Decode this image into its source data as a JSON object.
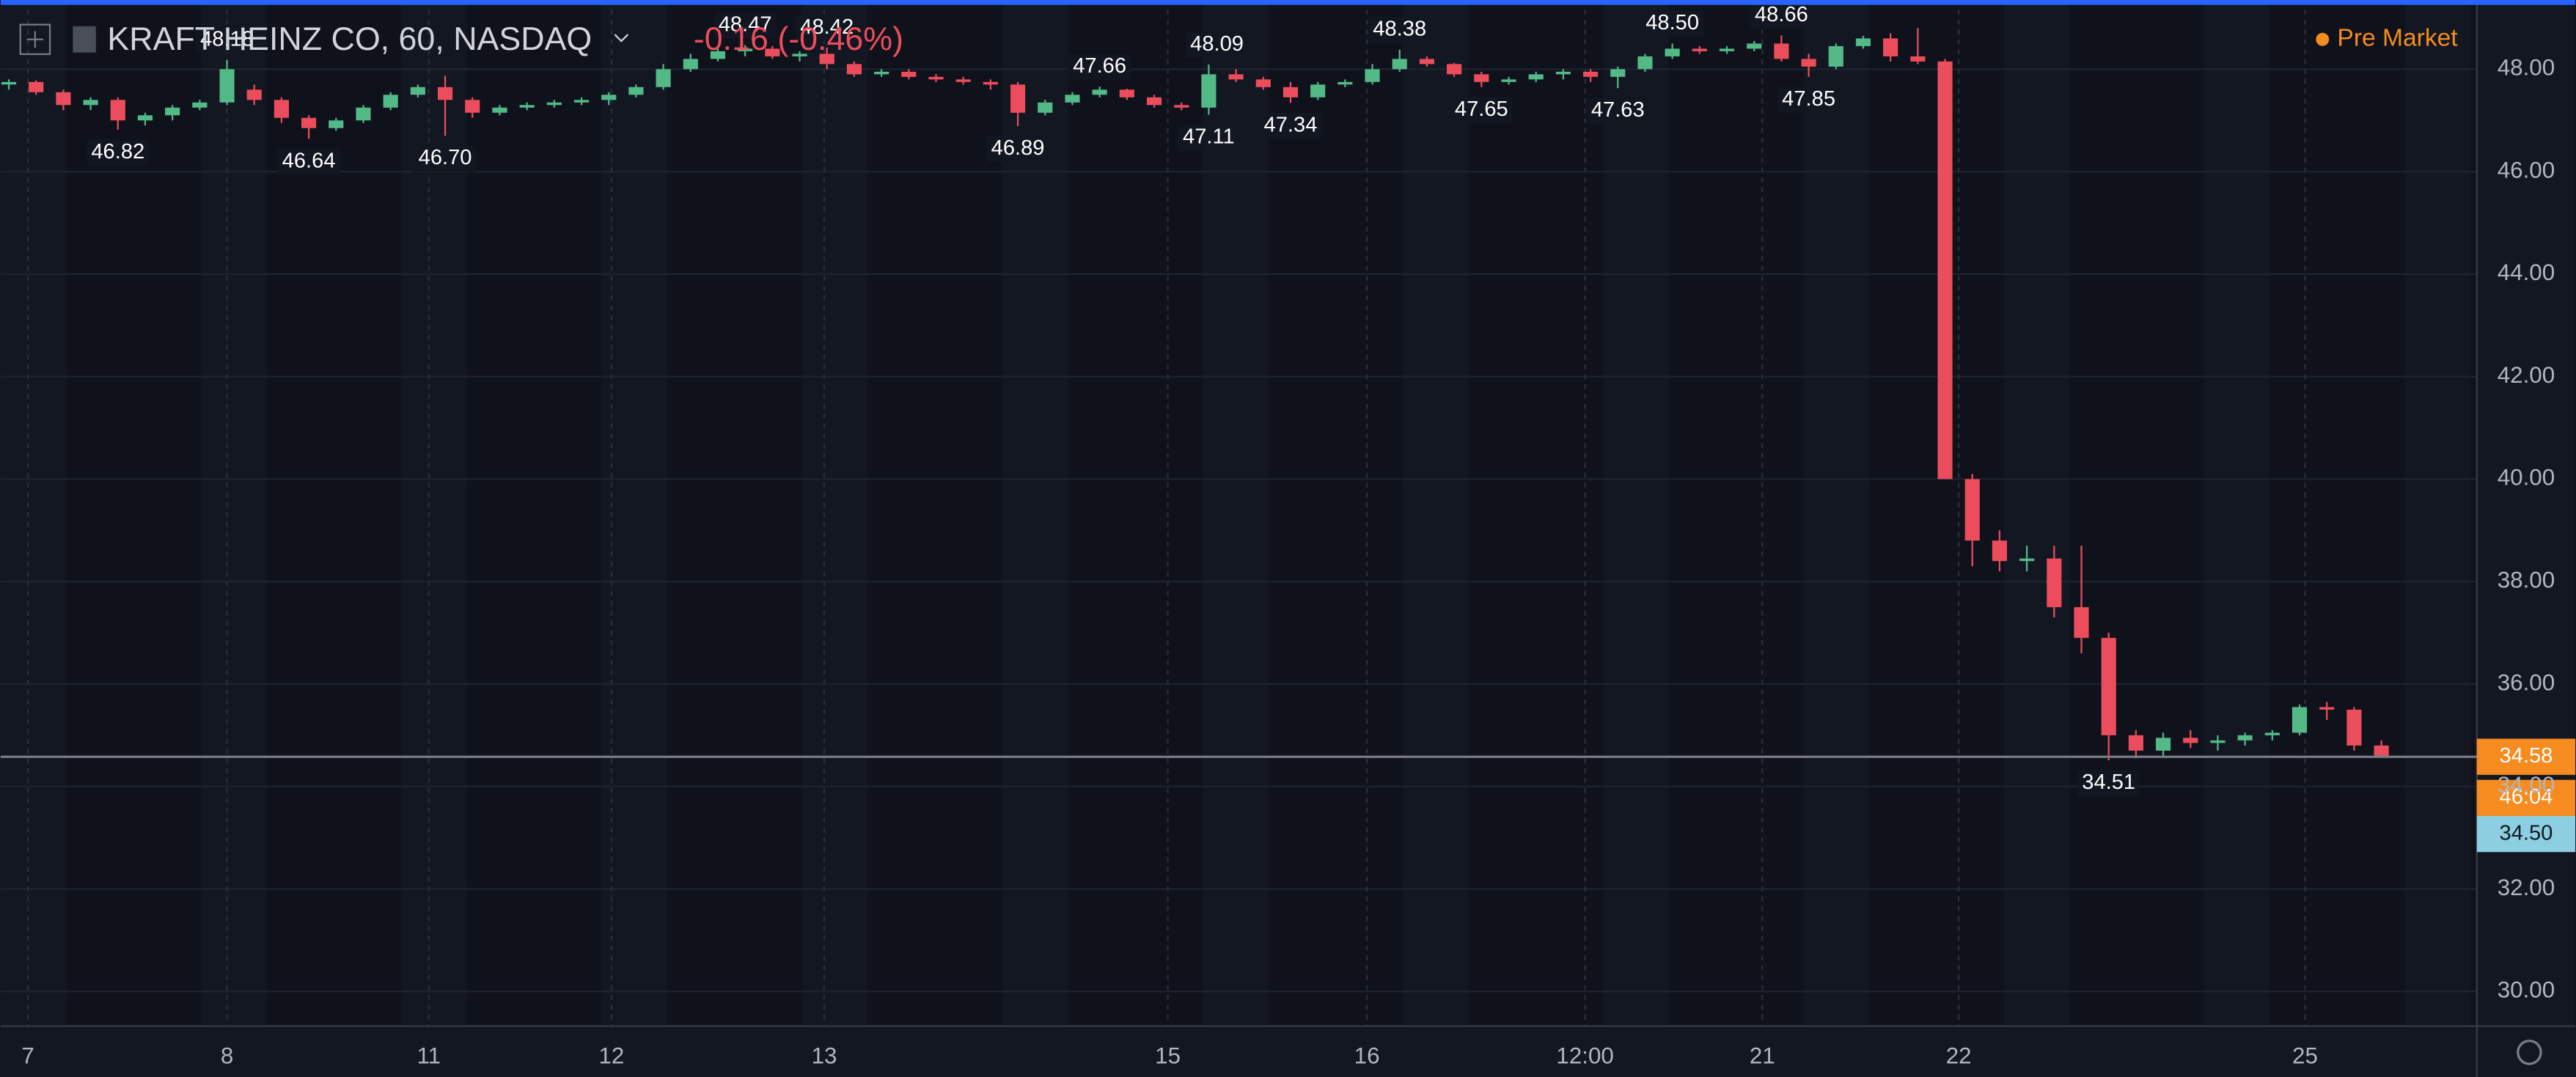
{
  "chart_data": {
    "type": "candlestick",
    "title": "KRAFT HEINZ CO, 60, NASDAQ",
    "change": "-0.16 (-0.46%)",
    "session": "Pre Market",
    "up_color": "#53b987",
    "down_color": "#eb4d5c",
    "ylim": [
      29.42,
      49.35
    ],
    "xlim": [
      -0.3,
      90.5
    ],
    "grid": true,
    "yticks": [
      {
        "value": 48,
        "label": "48.00"
      },
      {
        "value": 46,
        "label": "46.00"
      },
      {
        "value": 44,
        "label": "44.00"
      },
      {
        "value": 42,
        "label": "42.00"
      },
      {
        "value": 40,
        "label": "40.00"
      },
      {
        "value": 38,
        "label": "38.00"
      },
      {
        "value": 36,
        "label": "36.00"
      },
      {
        "value": 34,
        "label": "34.00"
      },
      {
        "value": 32,
        "label": "32.00"
      },
      {
        "value": 30,
        "label": "30.00"
      }
    ],
    "xticks": [
      {
        "value": 0.7,
        "label": "7"
      },
      {
        "value": 8.0,
        "label": "8"
      },
      {
        "value": 15.4,
        "label": "11"
      },
      {
        "value": 22.1,
        "label": "12"
      },
      {
        "value": 29.9,
        "label": "13"
      },
      {
        "value": 42.5,
        "label": "15"
      },
      {
        "value": 49.8,
        "label": "16"
      },
      {
        "value": 57.8,
        "label": "12:00"
      },
      {
        "value": 64.3,
        "label": "21"
      },
      {
        "value": 71.5,
        "label": "22"
      },
      {
        "value": 84.2,
        "label": "25"
      }
    ],
    "ohlc": [
      [
        47.7,
        47.8,
        47.6,
        47.75
      ],
      [
        47.75,
        47.78,
        47.5,
        47.55
      ],
      [
        47.55,
        47.6,
        47.2,
        47.3
      ],
      [
        47.3,
        47.45,
        47.2,
        47.4
      ],
      [
        47.4,
        47.45,
        46.82,
        47.0
      ],
      [
        47.0,
        47.15,
        46.9,
        47.1
      ],
      [
        47.1,
        47.3,
        47.0,
        47.25
      ],
      [
        47.25,
        47.4,
        47.2,
        47.35
      ],
      [
        47.35,
        48.18,
        47.3,
        48.0
      ],
      [
        47.6,
        47.7,
        47.3,
        47.4
      ],
      [
        47.4,
        47.45,
        46.95,
        47.05
      ],
      [
        47.05,
        47.1,
        46.64,
        46.85
      ],
      [
        46.85,
        47.05,
        46.8,
        47.0
      ],
      [
        47.0,
        47.3,
        46.95,
        47.25
      ],
      [
        47.25,
        47.55,
        47.2,
        47.5
      ],
      [
        47.5,
        47.7,
        47.45,
        47.65
      ],
      [
        47.65,
        47.87,
        46.7,
        47.4
      ],
      [
        47.4,
        47.45,
        47.05,
        47.15
      ],
      [
        47.15,
        47.3,
        47.1,
        47.25
      ],
      [
        47.25,
        47.35,
        47.2,
        47.3
      ],
      [
        47.3,
        47.4,
        47.25,
        47.35
      ],
      [
        47.35,
        47.45,
        47.3,
        47.4
      ],
      [
        47.4,
        47.55,
        47.3,
        47.5
      ],
      [
        47.5,
        47.7,
        47.45,
        47.65
      ],
      [
        47.65,
        48.1,
        47.6,
        48.0
      ],
      [
        48.0,
        48.3,
        47.95,
        48.2
      ],
      [
        48.2,
        48.4,
        48.15,
        48.35
      ],
      [
        48.35,
        48.47,
        48.25,
        48.4
      ],
      [
        48.4,
        48.45,
        48.2,
        48.25
      ],
      [
        48.25,
        48.35,
        48.15,
        48.3
      ],
      [
        48.3,
        48.42,
        48.0,
        48.1
      ],
      [
        48.1,
        48.15,
        47.85,
        47.9
      ],
      [
        47.9,
        48.0,
        47.85,
        47.95
      ],
      [
        47.95,
        48.0,
        47.8,
        47.85
      ],
      [
        47.85,
        47.9,
        47.75,
        47.8
      ],
      [
        47.8,
        47.85,
        47.7,
        47.75
      ],
      [
        47.75,
        47.8,
        47.6,
        47.7
      ],
      [
        47.7,
        47.75,
        46.89,
        47.15
      ],
      [
        47.15,
        47.4,
        47.1,
        47.35
      ],
      [
        47.35,
        47.55,
        47.3,
        47.5
      ],
      [
        47.5,
        47.66,
        47.45,
        47.6
      ],
      [
        47.6,
        47.62,
        47.4,
        47.45
      ],
      [
        47.45,
        47.5,
        47.25,
        47.3
      ],
      [
        47.3,
        47.35,
        47.2,
        47.25
      ],
      [
        47.25,
        48.09,
        47.11,
        47.9
      ],
      [
        47.9,
        48.0,
        47.75,
        47.8
      ],
      [
        47.8,
        47.85,
        47.6,
        47.65
      ],
      [
        47.65,
        47.75,
        47.34,
        47.45
      ],
      [
        47.45,
        47.75,
        47.4,
        47.7
      ],
      [
        47.7,
        47.8,
        47.65,
        47.75
      ],
      [
        47.75,
        48.1,
        47.7,
        48.0
      ],
      [
        48.0,
        48.38,
        47.95,
        48.2
      ],
      [
        48.2,
        48.25,
        48.05,
        48.1
      ],
      [
        48.1,
        48.12,
        47.85,
        47.9
      ],
      [
        47.9,
        47.95,
        47.65,
        47.75
      ],
      [
        47.75,
        47.85,
        47.7,
        47.8
      ],
      [
        47.8,
        47.95,
        47.75,
        47.9
      ],
      [
        47.9,
        48.0,
        47.8,
        47.95
      ],
      [
        47.95,
        48.0,
        47.75,
        47.85
      ],
      [
        47.85,
        48.05,
        47.63,
        48.0
      ],
      [
        48.0,
        48.3,
        47.95,
        48.25
      ],
      [
        48.25,
        48.5,
        48.2,
        48.4
      ],
      [
        48.4,
        48.45,
        48.3,
        48.35
      ],
      [
        48.35,
        48.45,
        48.3,
        48.4
      ],
      [
        48.4,
        48.55,
        48.35,
        48.5
      ],
      [
        48.5,
        48.66,
        48.15,
        48.2
      ],
      [
        48.2,
        48.3,
        47.85,
        48.05
      ],
      [
        48.05,
        48.5,
        48.0,
        48.45
      ],
      [
        48.45,
        48.65,
        48.4,
        48.6
      ],
      [
        48.6,
        48.7,
        48.15,
        48.25
      ],
      [
        48.25,
        48.8,
        48.1,
        48.15
      ],
      [
        48.15,
        48.2,
        40.0,
        40.0
      ],
      [
        40.0,
        40.1,
        38.3,
        38.8
      ],
      [
        38.8,
        39.0,
        38.2,
        38.4
      ],
      [
        38.4,
        38.7,
        38.2,
        38.45
      ],
      [
        38.45,
        38.7,
        37.3,
        37.5
      ],
      [
        37.5,
        38.7,
        36.6,
        36.9
      ],
      [
        36.9,
        37.0,
        34.51,
        35.0
      ],
      [
        35.0,
        35.1,
        34.55,
        34.7
      ],
      [
        34.7,
        35.05,
        34.6,
        34.95
      ],
      [
        34.95,
        35.1,
        34.75,
        34.85
      ],
      [
        34.85,
        35.0,
        34.7,
        34.9
      ],
      [
        34.9,
        35.05,
        34.8,
        35.0
      ],
      [
        35.0,
        35.1,
        34.9,
        35.05
      ],
      [
        35.05,
        35.6,
        35.0,
        35.55
      ],
      [
        35.55,
        35.65,
        35.3,
        35.5
      ],
      [
        35.5,
        35.55,
        34.7,
        34.8
      ],
      [
        34.8,
        34.9,
        34.58,
        34.6
      ]
    ],
    "annotations": [
      {
        "x": 4,
        "value": 46.82,
        "label": "46.82"
      },
      {
        "x": 8,
        "value": 48.18,
        "label": "48.18"
      },
      {
        "x": 11,
        "value": 46.64,
        "label": "46.64"
      },
      {
        "x": 16,
        "value": 46.7,
        "label": "46.70"
      },
      {
        "x": 27,
        "value": 48.47,
        "label": "48.47"
      },
      {
        "x": 30,
        "value": 48.42,
        "label": "48.42"
      },
      {
        "x": 37,
        "value": 46.89,
        "label": "46.89"
      },
      {
        "x": 40,
        "value": 47.66,
        "label": "47.66"
      },
      {
        "x": 44,
        "value": 47.11,
        "label": "47.11"
      },
      {
        "x": 44.3,
        "value": 48.09,
        "label": "48.09"
      },
      {
        "x": 47,
        "value": 47.34,
        "label": "47.34"
      },
      {
        "x": 51,
        "value": 48.38,
        "label": "48.38"
      },
      {
        "x": 54,
        "value": 47.65,
        "label": "47.65"
      },
      {
        "x": 59,
        "value": 47.63,
        "label": "47.63"
      },
      {
        "x": 61,
        "value": 48.5,
        "label": "48.50"
      },
      {
        "x": 65,
        "value": 48.66,
        "label": "48.66"
      },
      {
        "x": 66,
        "value": 47.85,
        "label": "47.85"
      },
      {
        "x": 77,
        "value": 34.51,
        "label": "34.51"
      }
    ],
    "last_price": {
      "value": 34.58,
      "label": "34.58",
      "color": "#f68c1f"
    },
    "countdown": "46:04",
    "indicator_tag": "34.50"
  }
}
